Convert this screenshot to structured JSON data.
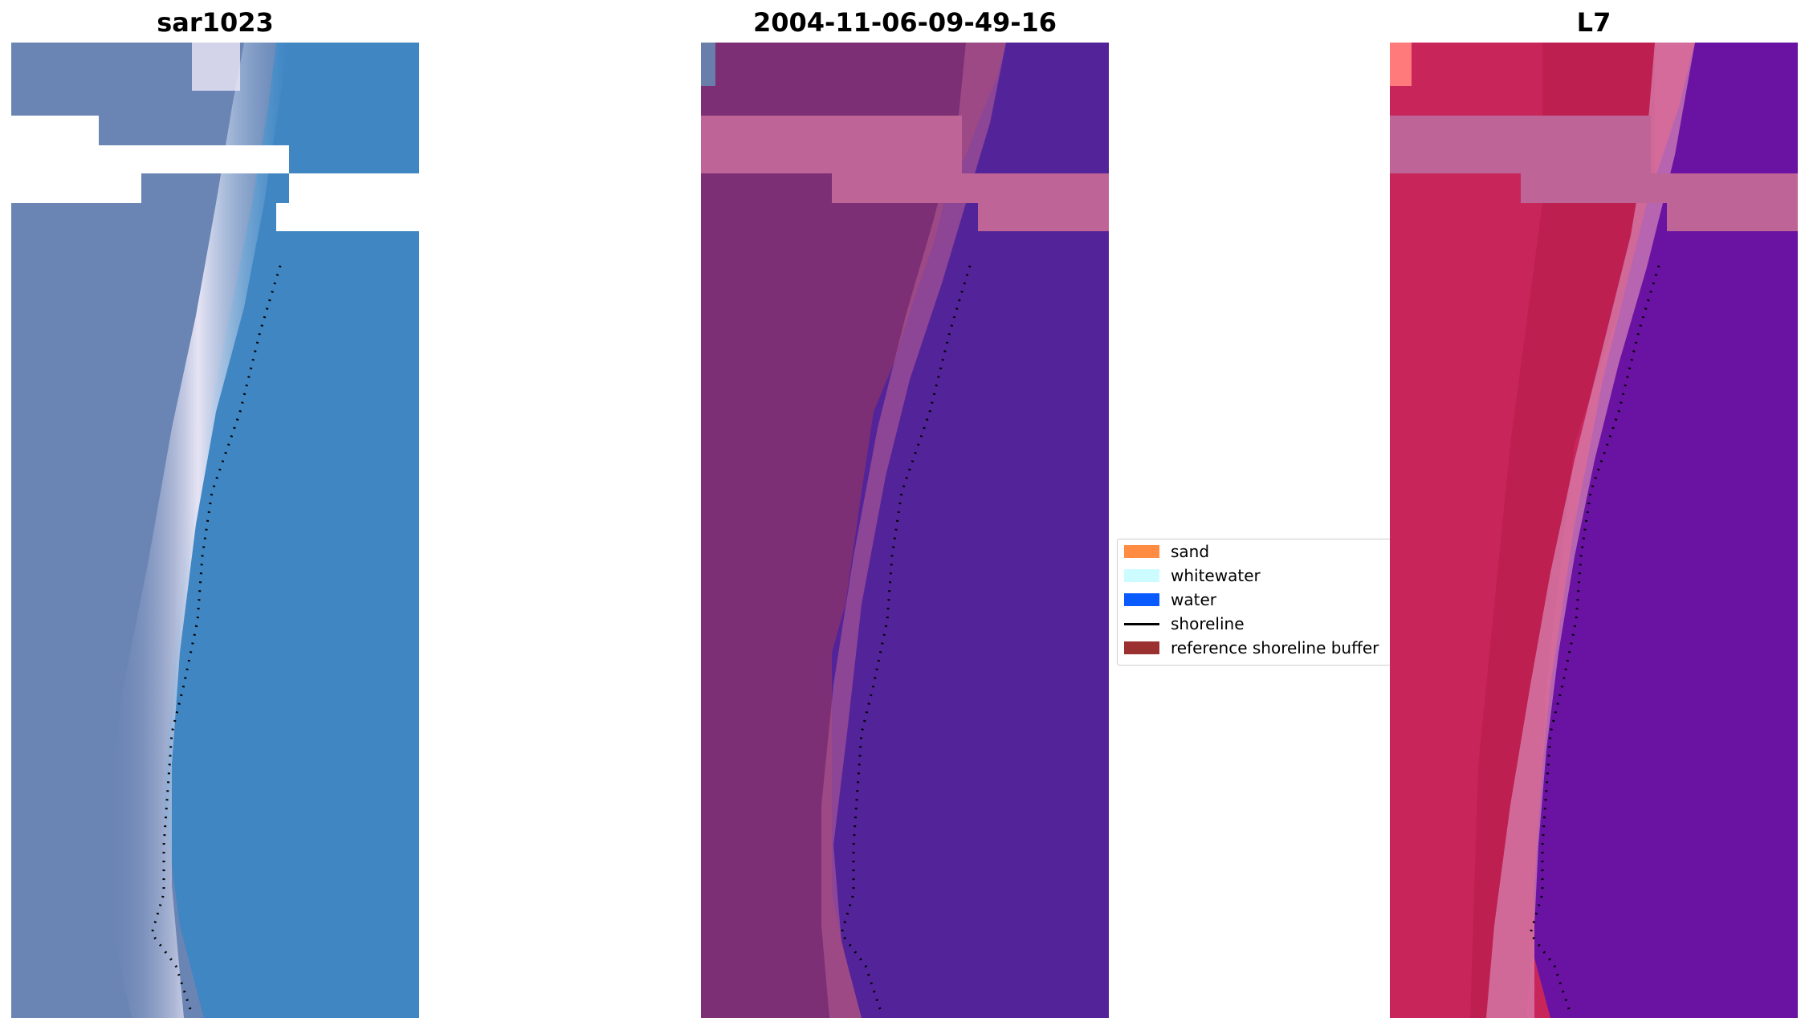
{
  "panels": [
    {
      "title": "sar1023",
      "name": "rgb"
    },
    {
      "title": "2004-11-06-09-49-16",
      "name": "classified"
    },
    {
      "title": "L7",
      "name": "index"
    }
  ],
  "legend": {
    "items": [
      {
        "label": "sand",
        "color": "#ff8c42",
        "kind": "patch"
      },
      {
        "label": "whitewater",
        "color": "#ccfcff",
        "kind": "patch"
      },
      {
        "label": "water",
        "color": "#0a5bff",
        "kind": "patch"
      },
      {
        "label": "shoreline",
        "color": "#000000",
        "kind": "line"
      },
      {
        "label": "reference shoreline buffer",
        "color": "#9b3030",
        "kind": "patch"
      }
    ]
  },
  "colors": {
    "rgb_land": "#6a84b4",
    "rgb_water": "#3f86c3",
    "rgb_surf": "#e8e4f4",
    "class_land": "#7c2f74",
    "class_water": "#53239a",
    "class_buffer": "#be6496",
    "index_land": "#c8265a",
    "index_water": "#6a12a2",
    "index_surf": "#d889b6"
  }
}
